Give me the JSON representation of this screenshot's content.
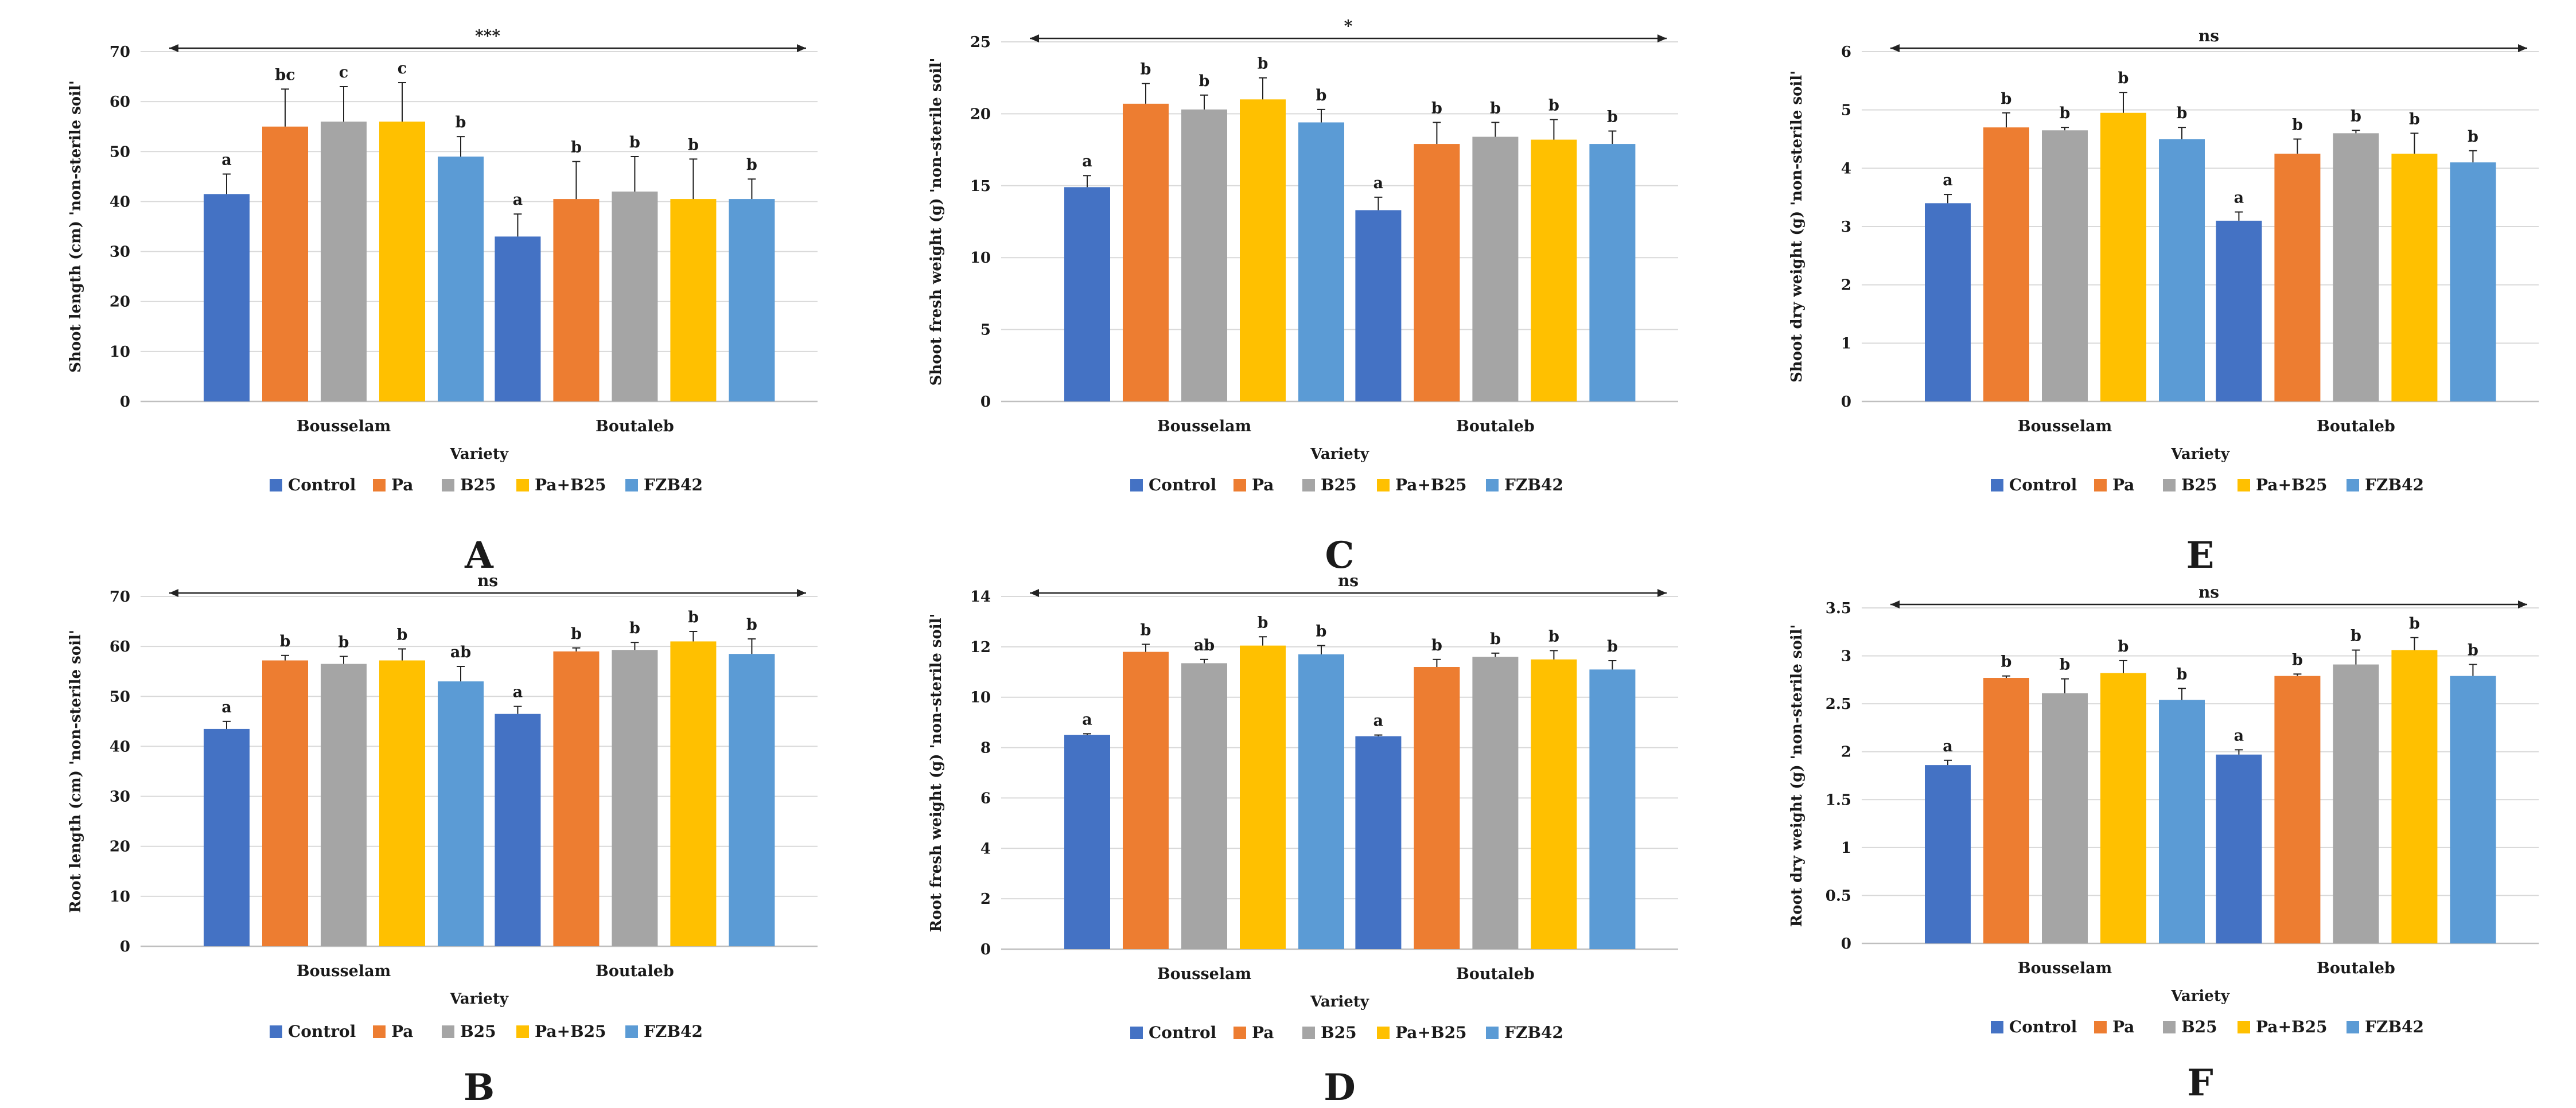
{
  "chart_data": [
    {
      "type": "bar",
      "panel": "A",
      "categories": [
        "Bousselam",
        "Boutaleb"
      ],
      "xlabel": "Variety",
      "ylabel": "Shoot length (cm) 'non-sterile soil'",
      "ylim": [
        0,
        70
      ],
      "yticks": [
        "0",
        "10",
        "20",
        "30",
        "40",
        "50",
        "60",
        "70"
      ],
      "significance": "***",
      "series": [
        {
          "name": "Control",
          "values": [
            41.5,
            33
          ],
          "errors": [
            4,
            4.5
          ],
          "letters": [
            "a",
            "a"
          ]
        },
        {
          "name": "Pa",
          "values": [
            55,
            40.5
          ],
          "errors": [
            7.5,
            7.5
          ],
          "letters": [
            "bc",
            "b"
          ]
        },
        {
          "name": "B25",
          "values": [
            56,
            42
          ],
          "errors": [
            7,
            7
          ],
          "letters": [
            "c",
            "b"
          ]
        },
        {
          "name": "Pa+B25",
          "values": [
            56,
            40.5
          ],
          "errors": [
            7.8,
            8
          ],
          "letters": [
            "c",
            "b"
          ]
        },
        {
          "name": "FZB42",
          "values": [
            49,
            40.5
          ],
          "errors": [
            4,
            4
          ],
          "letters": [
            "b",
            "b"
          ]
        }
      ]
    },
    {
      "type": "bar",
      "panel": "C",
      "categories": [
        "Bousselam",
        "Boutaleb"
      ],
      "xlabel": "Variety",
      "ylabel": "Shoot fresh weight (g) 'non-sterile soil'",
      "ylim": [
        0,
        25
      ],
      "yticks": [
        "0",
        "5",
        "10",
        "15",
        "20",
        "25"
      ],
      "significance": "*",
      "series": [
        {
          "name": "Control",
          "values": [
            14.9,
            13.3
          ],
          "errors": [
            0.8,
            0.9
          ],
          "letters": [
            "a",
            "a"
          ]
        },
        {
          "name": "Pa",
          "values": [
            20.7,
            17.9
          ],
          "errors": [
            1.4,
            1.5
          ],
          "letters": [
            "b",
            "b"
          ]
        },
        {
          "name": "B25",
          "values": [
            20.3,
            18.4
          ],
          "errors": [
            1.0,
            1.0
          ],
          "letters": [
            "b",
            "b"
          ]
        },
        {
          "name": "Pa+B25",
          "values": [
            21.0,
            18.2
          ],
          "errors": [
            1.5,
            1.4
          ],
          "letters": [
            "b",
            "b"
          ]
        },
        {
          "name": "FZB42",
          "values": [
            19.4,
            17.9
          ],
          "errors": [
            0.9,
            0.9
          ],
          "letters": [
            "b",
            "b"
          ]
        }
      ]
    },
    {
      "type": "bar",
      "panel": "E",
      "categories": [
        "Bousselam",
        "Boutaleb"
      ],
      "xlabel": "Variety",
      "ylabel": "Shoot dry weight (g) 'non-sterile soil'",
      "ylim": [
        0,
        6
      ],
      "yticks": [
        "0",
        "1",
        "2",
        "3",
        "4",
        "5",
        "6"
      ],
      "significance": "ns",
      "series": [
        {
          "name": "Control",
          "values": [
            3.4,
            3.1
          ],
          "errors": [
            0.15,
            0.15
          ],
          "letters": [
            "a",
            "a"
          ]
        },
        {
          "name": "Pa",
          "values": [
            4.7,
            4.25
          ],
          "errors": [
            0.25,
            0.25
          ],
          "letters": [
            "b",
            "b"
          ]
        },
        {
          "name": "B25",
          "values": [
            4.65,
            4.6
          ],
          "errors": [
            0.05,
            0.05
          ],
          "letters": [
            "b",
            "b"
          ]
        },
        {
          "name": "Pa+B25",
          "values": [
            4.95,
            4.25
          ],
          "errors": [
            0.35,
            0.35
          ],
          "letters": [
            "b",
            "b"
          ]
        },
        {
          "name": "FZB42",
          "values": [
            4.5,
            4.1
          ],
          "errors": [
            0.2,
            0.2
          ],
          "letters": [
            "b",
            "b"
          ]
        }
      ]
    },
    {
      "type": "bar",
      "panel": "B",
      "categories": [
        "Bousselam",
        "Boutaleb"
      ],
      "xlabel": "Variety",
      "ylabel": "Root length (cm) 'non-sterile soil'",
      "ylim": [
        0,
        70
      ],
      "yticks": [
        "0",
        "10",
        "20",
        "30",
        "40",
        "50",
        "60",
        "70"
      ],
      "significance": "ns",
      "series": [
        {
          "name": "Control",
          "values": [
            43.5,
            46.5
          ],
          "errors": [
            1.5,
            1.5
          ],
          "letters": [
            "a",
            "a"
          ]
        },
        {
          "name": "Pa",
          "values": [
            57.2,
            59
          ],
          "errors": [
            1.0,
            0.7
          ],
          "letters": [
            "b",
            "b"
          ]
        },
        {
          "name": "B25",
          "values": [
            56.5,
            59.3
          ],
          "errors": [
            1.5,
            1.5
          ],
          "letters": [
            "b",
            "b"
          ]
        },
        {
          "name": "Pa+B25",
          "values": [
            57.2,
            61
          ],
          "errors": [
            2.3,
            2.0
          ],
          "letters": [
            "b",
            "b"
          ]
        },
        {
          "name": "FZB42",
          "values": [
            53,
            58.5
          ],
          "errors": [
            3,
            3
          ],
          "letters": [
            "ab",
            "b"
          ]
        }
      ]
    },
    {
      "type": "bar",
      "panel": "D",
      "categories": [
        "Bousselam",
        "Boutaleb"
      ],
      "xlabel": "Variety",
      "ylabel": "Root fresh weight (g) 'non-sterile soil'",
      "ylim": [
        0,
        14
      ],
      "yticks": [
        "0",
        "2",
        "4",
        "6",
        "8",
        "10",
        "12",
        "14"
      ],
      "significance": "ns",
      "series": [
        {
          "name": "Control",
          "values": [
            8.5,
            8.45
          ],
          "errors": [
            0.05,
            0.05
          ],
          "letters": [
            "a",
            "a"
          ]
        },
        {
          "name": "Pa",
          "values": [
            11.8,
            11.2
          ],
          "errors": [
            0.3,
            0.3
          ],
          "letters": [
            "b",
            "b"
          ]
        },
        {
          "name": "B25",
          "values": [
            11.35,
            11.6
          ],
          "errors": [
            0.15,
            0.15
          ],
          "letters": [
            "ab",
            "b"
          ]
        },
        {
          "name": "Pa+B25",
          "values": [
            12.05,
            11.5
          ],
          "errors": [
            0.35,
            0.35
          ],
          "letters": [
            "b",
            "b"
          ]
        },
        {
          "name": "FZB42",
          "values": [
            11.7,
            11.1
          ],
          "errors": [
            0.35,
            0.35
          ],
          "letters": [
            "b",
            "b"
          ]
        }
      ]
    },
    {
      "type": "bar",
      "panel": "F",
      "categories": [
        "Bousselam",
        "Boutaleb"
      ],
      "xlabel": "Variety",
      "ylabel": "Root dry weight (g) 'non-sterile soil'",
      "ylim": [
        0,
        3.5
      ],
      "yticks": [
        "0",
        "0.5",
        "1",
        "1.5",
        "2",
        "2.5",
        "3",
        "3.5"
      ],
      "significance": "ns",
      "series": [
        {
          "name": "Control",
          "values": [
            1.86,
            1.97
          ],
          "errors": [
            0.05,
            0.05
          ],
          "letters": [
            "a",
            "a"
          ]
        },
        {
          "name": "Pa",
          "values": [
            2.77,
            2.79
          ],
          "errors": [
            0.02,
            0.02
          ],
          "letters": [
            "b",
            "b"
          ]
        },
        {
          "name": "B25",
          "values": [
            2.61,
            2.91
          ],
          "errors": [
            0.15,
            0.15
          ],
          "letters": [
            "b",
            "b"
          ]
        },
        {
          "name": "Pa+B25",
          "values": [
            2.82,
            3.06
          ],
          "errors": [
            0.13,
            0.13
          ],
          "letters": [
            "b",
            "b"
          ]
        },
        {
          "name": "FZB42",
          "values": [
            2.54,
            2.79
          ],
          "errors": [
            0.12,
            0.12
          ],
          "letters": [
            "b",
            "b"
          ]
        }
      ]
    }
  ],
  "legend": [
    "Control",
    "Pa",
    "B25",
    "Pa+B25",
    "FZB42"
  ],
  "colors": {
    "Control": "#4472c4",
    "Pa": "#ed7d31",
    "B25": "#a5a5a5",
    "Pa+B25": "#ffc000",
    "FZB42": "#5b9bd5",
    "gridline": "#d9d9d9",
    "axis": "#bfbfbf",
    "text": "#1a1a1a"
  }
}
